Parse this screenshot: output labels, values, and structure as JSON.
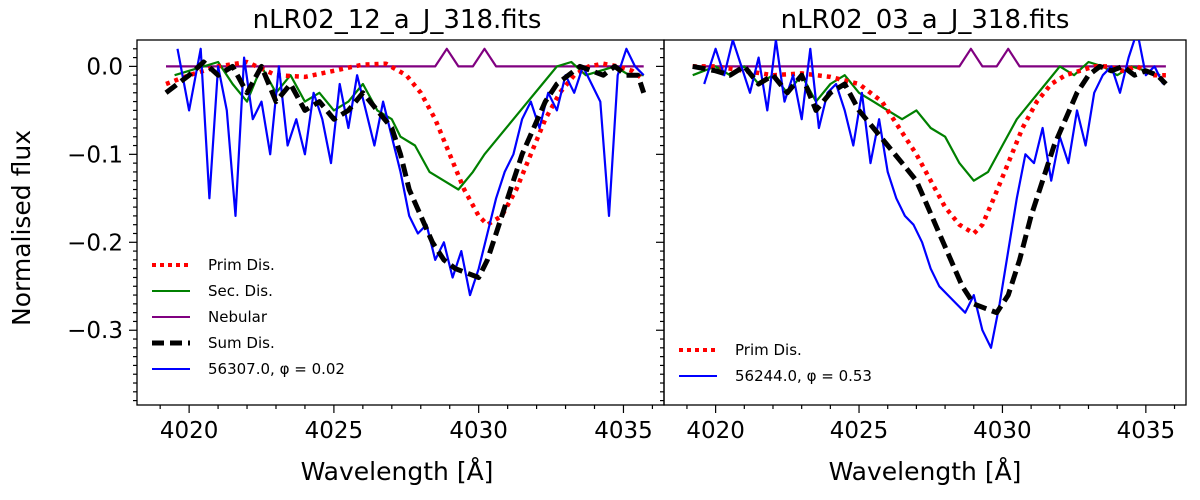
{
  "figure": {
    "ylabel": "Normalised flux",
    "xlabel": "Wavelength [Å]"
  },
  "chart_data": [
    {
      "type": "line",
      "title": "nLR02_12_a_J_318.fits",
      "xlabel": "Wavelength [Å]",
      "ylabel": "Normalised flux",
      "xlim": [
        4018.2,
        4036.4
      ],
      "ylim": [
        -0.385,
        0.03
      ],
      "xticks": [
        4020,
        4025,
        4030,
        4035
      ],
      "yticks": [
        0.0,
        -0.1,
        -0.2,
        -0.3
      ],
      "ytick_labels": [
        "0.0",
        "−0.1",
        "−0.2",
        "−0.3"
      ],
      "legend_position": "lower-left",
      "series": [
        {
          "name": "Prim Dis.",
          "color": "#ff0000",
          "style": "dotted",
          "x": [
            4019.2,
            4020.0,
            4021.0,
            4022.0,
            4023.0,
            4024.0,
            4025.0,
            4026.0,
            4026.8,
            4027.5,
            4028.0,
            4028.5,
            4029.0,
            4029.5,
            4030.0,
            4030.3,
            4030.8,
            4031.3,
            4031.8,
            4032.3,
            4032.8,
            4033.3,
            4033.8,
            4034.3,
            4034.8,
            4035.3,
            4035.7
          ],
          "y": [
            -0.02,
            -0.01,
            0.0,
            0.005,
            -0.01,
            -0.012,
            -0.005,
            0.002,
            0.003,
            -0.01,
            -0.03,
            -0.06,
            -0.1,
            -0.14,
            -0.17,
            -0.18,
            -0.17,
            -0.14,
            -0.1,
            -0.06,
            -0.03,
            -0.01,
            0.0,
            0.003,
            0.0,
            -0.005,
            -0.015
          ]
        },
        {
          "name": "Sec. Dis.",
          "color": "#008000",
          "style": "solid",
          "x": [
            4019.5,
            4020.0,
            4020.5,
            4021.0,
            4021.5,
            4022.0,
            4022.5,
            4023.0,
            4023.5,
            4024.0,
            4024.5,
            4025.0,
            4025.5,
            4026.0,
            4026.5,
            4027.0,
            4027.3,
            4027.8,
            4028.3,
            4028.8,
            4029.3,
            4029.8,
            4030.2,
            4030.7,
            4031.2,
            4031.7,
            4032.2,
            4032.7,
            4033.2,
            4033.7,
            4034.2,
            4034.7,
            4035.2,
            4035.7
          ],
          "y": [
            -0.01,
            -0.005,
            0.0,
            0.005,
            -0.02,
            -0.04,
            0.0,
            -0.03,
            -0.01,
            -0.04,
            -0.03,
            -0.05,
            -0.04,
            -0.02,
            -0.05,
            -0.06,
            -0.08,
            -0.09,
            -0.12,
            -0.13,
            -0.14,
            -0.12,
            -0.1,
            -0.08,
            -0.06,
            -0.04,
            -0.02,
            0.0,
            0.005,
            -0.01,
            -0.005,
            0.0,
            -0.01,
            -0.01
          ]
        },
        {
          "name": "Nebular",
          "color": "#800080",
          "style": "solid",
          "x": [
            4019.2,
            4028.5,
            4028.9,
            4029.3,
            4029.8,
            4030.2,
            4030.6,
            4035.7
          ],
          "y": [
            0.0,
            0.0,
            0.02,
            0.0,
            0.0,
            0.02,
            0.0,
            0.0
          ]
        },
        {
          "name": "Sum Dis.",
          "color": "#000000",
          "style": "dashed",
          "x": [
            4019.2,
            4020.0,
            4020.5,
            4021.0,
            4021.5,
            4022.0,
            4022.5,
            4023.0,
            4023.5,
            4024.0,
            4024.5,
            4025.0,
            4025.5,
            4026.0,
            4026.5,
            4027.0,
            4027.3,
            4027.6,
            4028.0,
            4028.4,
            4028.8,
            4029.2,
            4029.6,
            4030.0,
            4030.3,
            4030.7,
            4031.1,
            4031.5,
            4031.9,
            4032.3,
            4032.7,
            4033.1,
            4033.5,
            4033.9,
            4034.3,
            4034.7,
            4035.1,
            4035.5,
            4035.7
          ],
          "y": [
            -0.03,
            -0.01,
            0.005,
            -0.01,
            0.0,
            -0.03,
            0.0,
            -0.04,
            -0.02,
            -0.05,
            -0.04,
            -0.06,
            -0.05,
            -0.03,
            -0.05,
            -0.07,
            -0.1,
            -0.14,
            -0.17,
            -0.2,
            -0.22,
            -0.23,
            -0.235,
            -0.24,
            -0.22,
            -0.18,
            -0.14,
            -0.1,
            -0.07,
            -0.04,
            -0.02,
            -0.01,
            0.0,
            -0.005,
            -0.01,
            0.0,
            -0.01,
            -0.01,
            -0.03
          ]
        },
        {
          "name": "56307.0, φ = 0.02",
          "color": "#0000ff",
          "style": "solid",
          "x": [
            4019.6,
            4020.0,
            4020.4,
            4020.7,
            4021.0,
            4021.3,
            4021.6,
            4021.9,
            4022.2,
            4022.5,
            4022.8,
            4023.1,
            4023.4,
            4023.7,
            4024.0,
            4024.3,
            4024.6,
            4024.9,
            4025.2,
            4025.5,
            4025.8,
            4026.1,
            4026.4,
            4026.7,
            4027.0,
            4027.3,
            4027.6,
            4027.9,
            4028.2,
            4028.5,
            4028.8,
            4029.1,
            4029.4,
            4029.7,
            4030.0,
            4030.3,
            4030.6,
            4030.9,
            4031.2,
            4031.5,
            4031.8,
            4032.1,
            4032.4,
            4032.7,
            4033.0,
            4033.3,
            4033.6,
            4033.9,
            4034.2,
            4034.5,
            4034.8,
            4035.1,
            4035.4,
            4035.7
          ],
          "y": [
            0.02,
            -0.05,
            0.02,
            -0.15,
            0.0,
            -0.05,
            -0.17,
            0.01,
            -0.06,
            -0.04,
            -0.1,
            0.0,
            -0.09,
            -0.06,
            -0.1,
            -0.03,
            -0.06,
            -0.11,
            -0.02,
            -0.07,
            -0.01,
            -0.05,
            -0.09,
            -0.04,
            -0.08,
            -0.12,
            -0.17,
            -0.19,
            -0.18,
            -0.22,
            -0.2,
            -0.24,
            -0.21,
            -0.26,
            -0.23,
            -0.19,
            -0.15,
            -0.12,
            -0.1,
            -0.06,
            -0.04,
            -0.07,
            -0.03,
            -0.05,
            -0.01,
            -0.03,
            0.0,
            -0.02,
            -0.04,
            -0.17,
            -0.01,
            0.02,
            0.0,
            -0.01
          ]
        }
      ]
    },
    {
      "type": "line",
      "title": "nLR02_03_a_J_318.fits",
      "xlabel": "Wavelength [Å]",
      "xlim": [
        4018.2,
        4036.4
      ],
      "ylim": [
        -0.385,
        0.03
      ],
      "xticks": [
        4020,
        4025,
        4030,
        4035
      ],
      "legend_position": "lower-left",
      "series": [
        {
          "name": "Prim Dis.",
          "color": "#ff0000",
          "style": "dotted",
          "x": [
            4019.2,
            4020.0,
            4021.0,
            4022.0,
            4023.0,
            4024.0,
            4025.0,
            4025.8,
            4026.4,
            4027.0,
            4027.5,
            4028.0,
            4028.5,
            4029.0,
            4029.3,
            4029.7,
            4030.2,
            4030.7,
            4031.2,
            4031.7,
            4032.2,
            4032.7,
            4033.2,
            4033.7,
            4034.2,
            4034.7,
            4035.2,
            4035.7
          ],
          "y": [
            0.0,
            0.0,
            -0.005,
            -0.01,
            -0.008,
            -0.012,
            -0.02,
            -0.04,
            -0.07,
            -0.1,
            -0.13,
            -0.16,
            -0.18,
            -0.19,
            -0.18,
            -0.15,
            -0.11,
            -0.07,
            -0.04,
            -0.02,
            -0.01,
            -0.005,
            0.0,
            0.0,
            -0.005,
            0.0,
            -0.01,
            -0.01
          ]
        },
        {
          "name": "Sec. Dis.",
          "color": "#008000",
          "style": "solid",
          "x": [
            4019.2,
            4020.0,
            4020.5,
            4021.0,
            4021.5,
            4022.0,
            4022.5,
            4023.0,
            4023.5,
            4024.0,
            4024.5,
            4025.0,
            4025.5,
            4026.0,
            4026.5,
            4027.0,
            4027.5,
            4028.0,
            4028.5,
            4029.0,
            4029.5,
            4030.0,
            4030.5,
            4031.0,
            4031.5,
            4032.0,
            4032.5,
            4033.0,
            4033.5,
            4034.0,
            4034.5,
            4035.0,
            4035.5
          ],
          "y": [
            -0.01,
            0.0,
            -0.01,
            0.0,
            -0.02,
            -0.01,
            -0.03,
            -0.01,
            -0.04,
            -0.02,
            -0.01,
            -0.03,
            -0.04,
            -0.05,
            -0.06,
            -0.05,
            -0.07,
            -0.08,
            -0.11,
            -0.13,
            -0.12,
            -0.09,
            -0.06,
            -0.04,
            -0.02,
            0.0,
            -0.01,
            0.005,
            0.0,
            -0.01,
            0.0,
            -0.005,
            -0.01
          ]
        },
        {
          "name": "Nebular",
          "color": "#800080",
          "style": "solid",
          "x": [
            4019.2,
            4028.5,
            4028.9,
            4029.3,
            4029.8,
            4030.2,
            4030.6,
            4035.7
          ],
          "y": [
            0.0,
            0.0,
            0.02,
            0.0,
            0.0,
            0.02,
            0.0,
            0.0
          ]
        },
        {
          "name": "Sum Dis.",
          "color": "#000000",
          "style": "dashed",
          "x": [
            4019.2,
            4020.0,
            4020.5,
            4021.0,
            4021.5,
            4022.0,
            4022.5,
            4023.0,
            4023.5,
            4024.0,
            4024.5,
            4025.0,
            4025.5,
            4026.0,
            4026.5,
            4027.0,
            4027.4,
            4027.8,
            4028.2,
            4028.6,
            4029.0,
            4029.4,
            4029.8,
            4030.2,
            4030.6,
            4031.0,
            4031.4,
            4031.8,
            4032.2,
            4032.6,
            4033.0,
            4033.4,
            4033.8,
            4034.2,
            4034.6,
            4035.0,
            4035.4,
            4035.7
          ],
          "y": [
            0.0,
            -0.005,
            -0.01,
            0.0,
            -0.02,
            -0.01,
            -0.03,
            -0.01,
            -0.05,
            -0.03,
            -0.02,
            -0.05,
            -0.07,
            -0.09,
            -0.11,
            -0.13,
            -0.16,
            -0.19,
            -0.22,
            -0.25,
            -0.27,
            -0.275,
            -0.28,
            -0.26,
            -0.22,
            -0.17,
            -0.13,
            -0.09,
            -0.06,
            -0.03,
            -0.01,
            0.0,
            -0.005,
            0.0,
            -0.01,
            -0.005,
            -0.01,
            -0.02
          ]
        },
        {
          "name": "56244.0, φ = 0.53",
          "color": "#0000ff",
          "style": "solid",
          "x": [
            4019.6,
            4020.0,
            4020.3,
            4020.6,
            4020.9,
            4021.2,
            4021.5,
            4021.8,
            4022.1,
            4022.4,
            4022.7,
            4023.0,
            4023.3,
            4023.6,
            4023.9,
            4024.2,
            4024.5,
            4024.8,
            4025.1,
            4025.4,
            4025.7,
            4026.0,
            4026.3,
            4026.6,
            4026.9,
            4027.2,
            4027.5,
            4027.8,
            4028.1,
            4028.4,
            4028.7,
            4029.0,
            4029.3,
            4029.6,
            4029.9,
            4030.2,
            4030.5,
            4030.8,
            4031.1,
            4031.4,
            4031.7,
            4032.0,
            4032.3,
            4032.6,
            4032.9,
            4033.2,
            4033.5,
            4033.8,
            4034.1,
            4034.4,
            4034.7,
            4035.0,
            4035.3,
            4035.6
          ],
          "y": [
            -0.02,
            0.02,
            -0.01,
            0.03,
            0.0,
            -0.03,
            0.01,
            -0.05,
            0.03,
            -0.04,
            -0.01,
            -0.06,
            0.02,
            -0.07,
            -0.03,
            -0.02,
            -0.05,
            -0.09,
            -0.03,
            -0.11,
            -0.06,
            -0.12,
            -0.15,
            -0.17,
            -0.18,
            -0.2,
            -0.23,
            -0.25,
            -0.26,
            -0.27,
            -0.28,
            -0.26,
            -0.3,
            -0.32,
            -0.27,
            -0.21,
            -0.15,
            -0.1,
            -0.11,
            -0.07,
            -0.13,
            -0.08,
            -0.11,
            -0.05,
            -0.09,
            -0.03,
            -0.01,
            0.0,
            -0.03,
            0.01,
            0.04,
            -0.01,
            0.0,
            -0.02
          ]
        }
      ],
      "legend_entries": [
        "Prim Dis.",
        "56244.0, φ = 0.53"
      ]
    }
  ]
}
